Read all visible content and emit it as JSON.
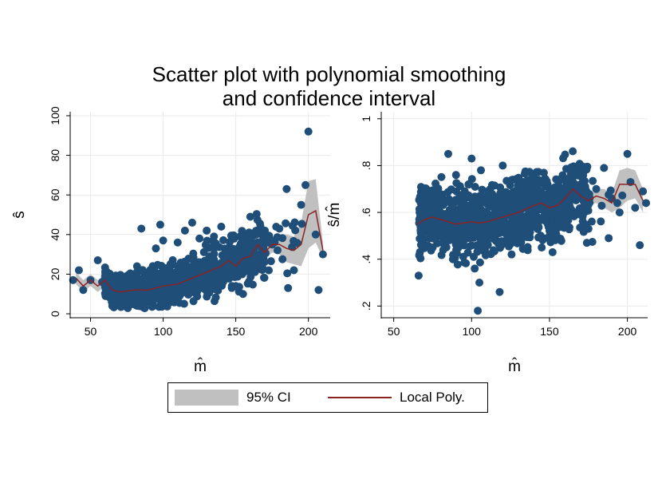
{
  "title_line1": "Scatter plot with polynomial smoothing",
  "title_line2": "and confidence interval",
  "colors": {
    "points": "#1f4e79",
    "line": "#8b2323",
    "ci": "#c0c0c0",
    "grid": "#eaeaea"
  },
  "legend": {
    "ci_label": "95% CI",
    "line_label": "Local Poly."
  },
  "chart_data": [
    {
      "type": "scatter",
      "xlabel": "m̂",
      "ylabel": "ŝ",
      "xlim": [
        36,
        215
      ],
      "ylim": [
        -2,
        102
      ],
      "xticks": [
        50,
        100,
        150,
        200
      ],
      "yticks": [
        0,
        20,
        40,
        60,
        80,
        100
      ],
      "ytick_labels": [
        "0",
        "20",
        "40",
        "60",
        "80",
        "100"
      ],
      "grid": true,
      "points_extra": [
        [
          38,
          17
        ],
        [
          42,
          22
        ],
        [
          45,
          12
        ],
        [
          50,
          17
        ],
        [
          55,
          27
        ],
        [
          58,
          16
        ],
        [
          60,
          19
        ],
        [
          63,
          9
        ],
        [
          65,
          4
        ],
        [
          70,
          10
        ],
        [
          72,
          7
        ],
        [
          75,
          14
        ],
        [
          80,
          12
        ],
        [
          82,
          24
        ],
        [
          85,
          43
        ],
        [
          88,
          8
        ],
        [
          95,
          33
        ],
        [
          98,
          45
        ],
        [
          100,
          37
        ],
        [
          102,
          23
        ],
        [
          105,
          25
        ],
        [
          110,
          36
        ],
        [
          115,
          42
        ],
        [
          120,
          46
        ],
        [
          125,
          38
        ],
        [
          130,
          42
        ],
        [
          135,
          39
        ],
        [
          140,
          44
        ],
        [
          145,
          20
        ],
        [
          150,
          14
        ],
        [
          155,
          10
        ],
        [
          160,
          49
        ],
        [
          165,
          36
        ],
        [
          170,
          42
        ],
        [
          175,
          35
        ],
        [
          180,
          43
        ],
        [
          185,
          63
        ],
        [
          186,
          13
        ],
        [
          190,
          22
        ],
        [
          195,
          55
        ],
        [
          198,
          65
        ],
        [
          200,
          92
        ],
        [
          205,
          40
        ],
        [
          207,
          12
        ],
        [
          210,
          30
        ]
      ],
      "series": [
        {
          "name": "Local Poly.",
          "x": [
            40,
            45,
            50,
            55,
            60,
            65,
            70,
            80,
            90,
            100,
            110,
            120,
            130,
            140,
            145,
            150,
            155,
            160,
            165,
            170,
            175,
            180,
            185,
            190,
            195,
            200,
            205,
            210
          ],
          "y": [
            18,
            14,
            17,
            14,
            17,
            12,
            11,
            12,
            12,
            14,
            15,
            18,
            21,
            24,
            27,
            24,
            28,
            29,
            35,
            31,
            35,
            35,
            33,
            32,
            35,
            50,
            52,
            32
          ],
          "ci_low": [
            15,
            11,
            14,
            11,
            14,
            9,
            9,
            10,
            10,
            12,
            13,
            16,
            19,
            22,
            24,
            21,
            25,
            25,
            30,
            27,
            31,
            30,
            26,
            25,
            24,
            33,
            36,
            28
          ],
          "ci_high": [
            21,
            17,
            20,
            17,
            20,
            15,
            13,
            14,
            14,
            16,
            17,
            20,
            23,
            26,
            30,
            27,
            31,
            33,
            40,
            35,
            39,
            40,
            40,
            39,
            46,
            67,
            68,
            36
          ]
        }
      ]
    },
    {
      "type": "scatter",
      "xlabel": "m̂",
      "ylabel": "ŝ/m̂",
      "xlim": [
        42,
        213
      ],
      "ylim": [
        0.15,
        1.03
      ],
      "xticks": [
        50,
        100,
        150,
        200
      ],
      "yticks": [
        0.2,
        0.4,
        0.6,
        0.8,
        1
      ],
      "ytick_labels": [
        ".2",
        ".4",
        ".6",
        ".8",
        "1"
      ],
      "grid": true,
      "points_extra": [
        [
          66,
          0.33
        ],
        [
          68,
          0.5
        ],
        [
          70,
          0.63
        ],
        [
          75,
          0.45
        ],
        [
          80,
          0.6
        ],
        [
          85,
          0.85
        ],
        [
          88,
          0.4
        ],
        [
          90,
          0.76
        ],
        [
          95,
          0.52
        ],
        [
          98,
          0.72
        ],
        [
          100,
          0.83
        ],
        [
          102,
          0.36
        ],
        [
          104,
          0.18
        ],
        [
          105,
          0.3
        ],
        [
          106,
          0.78
        ],
        [
          110,
          0.46
        ],
        [
          112,
          0.7
        ],
        [
          115,
          0.55
        ],
        [
          118,
          0.26
        ],
        [
          120,
          0.8
        ],
        [
          125,
          0.68
        ],
        [
          130,
          0.48
        ],
        [
          135,
          0.7
        ],
        [
          140,
          0.76
        ],
        [
          145,
          0.45
        ],
        [
          150,
          0.5
        ],
        [
          152,
          0.43
        ],
        [
          155,
          0.74
        ],
        [
          160,
          0.55
        ],
        [
          165,
          0.71
        ],
        [
          170,
          0.6
        ],
        [
          175,
          0.53
        ],
        [
          180,
          0.7
        ],
        [
          185,
          0.79
        ],
        [
          188,
          0.49
        ],
        [
          190,
          0.66
        ],
        [
          195,
          0.6
        ],
        [
          200,
          0.85
        ],
        [
          202,
          0.73
        ],
        [
          205,
          0.62
        ],
        [
          208,
          0.46
        ],
        [
          210,
          0.69
        ],
        [
          212,
          0.64
        ]
      ],
      "series": [
        {
          "name": "Local Poly.",
          "x": [
            65,
            70,
            75,
            80,
            90,
            100,
            105,
            110,
            120,
            130,
            140,
            145,
            150,
            155,
            160,
            165,
            170,
            175,
            180,
            185,
            190,
            195,
            200,
            205,
            210
          ],
          "y": [
            0.55,
            0.57,
            0.58,
            0.57,
            0.55,
            0.56,
            0.555,
            0.56,
            0.58,
            0.6,
            0.63,
            0.64,
            0.62,
            0.63,
            0.66,
            0.7,
            0.67,
            0.65,
            0.67,
            0.66,
            0.64,
            0.72,
            0.72,
            0.72,
            0.65
          ],
          "ci_low": [
            0.53,
            0.55,
            0.56,
            0.555,
            0.54,
            0.55,
            0.545,
            0.55,
            0.57,
            0.59,
            0.62,
            0.63,
            0.61,
            0.62,
            0.64,
            0.68,
            0.65,
            0.63,
            0.64,
            0.62,
            0.6,
            0.62,
            0.65,
            0.66,
            0.6
          ],
          "ci_high": [
            0.57,
            0.59,
            0.6,
            0.585,
            0.56,
            0.57,
            0.565,
            0.57,
            0.59,
            0.61,
            0.64,
            0.65,
            0.63,
            0.64,
            0.68,
            0.72,
            0.69,
            0.67,
            0.7,
            0.7,
            0.68,
            0.78,
            0.79,
            0.78,
            0.7
          ]
        }
      ]
    }
  ]
}
